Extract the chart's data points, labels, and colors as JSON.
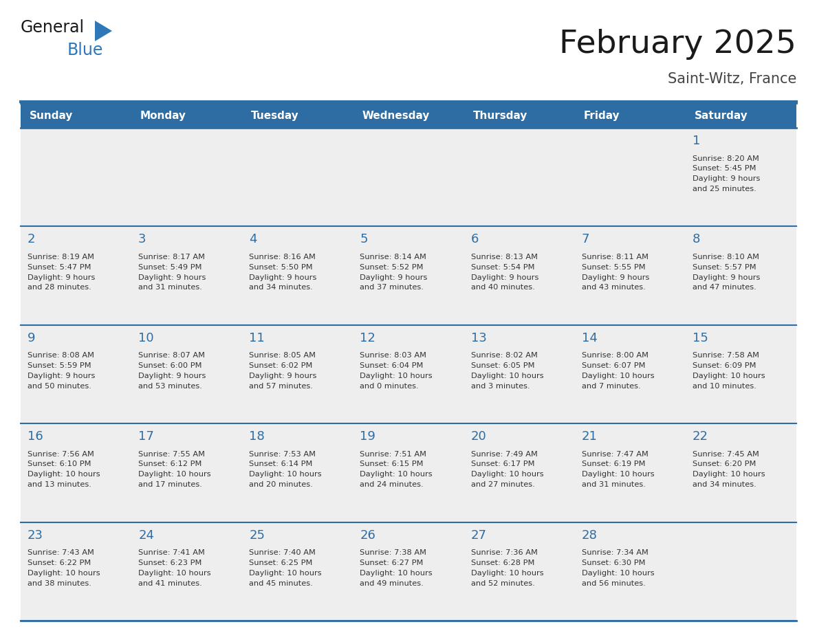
{
  "title": "February 2025",
  "subtitle": "Saint-Witz, France",
  "days_of_week": [
    "Sunday",
    "Monday",
    "Tuesday",
    "Wednesday",
    "Thursday",
    "Friday",
    "Saturday"
  ],
  "header_bg": "#2E6DA4",
  "header_text_color": "#FFFFFF",
  "day_number_color": "#2E6DA4",
  "cell_text_color": "#333333",
  "bg_color": "#FFFFFF",
  "grid_line_color": "#2E6DA4",
  "row_bg": "#EEEEEE",
  "title_color": "#1a1a1a",
  "subtitle_color": "#444444",
  "logo_general_color": "#1a1a1a",
  "logo_blue_color": "#2E78B8",
  "calendar_data": {
    "1": {
      "sunrise": "8:20 AM",
      "sunset": "5:45 PM",
      "daylight": "9 hours and 25 minutes."
    },
    "2": {
      "sunrise": "8:19 AM",
      "sunset": "5:47 PM",
      "daylight": "9 hours and 28 minutes."
    },
    "3": {
      "sunrise": "8:17 AM",
      "sunset": "5:49 PM",
      "daylight": "9 hours and 31 minutes."
    },
    "4": {
      "sunrise": "8:16 AM",
      "sunset": "5:50 PM",
      "daylight": "9 hours and 34 minutes."
    },
    "5": {
      "sunrise": "8:14 AM",
      "sunset": "5:52 PM",
      "daylight": "9 hours and 37 minutes."
    },
    "6": {
      "sunrise": "8:13 AM",
      "sunset": "5:54 PM",
      "daylight": "9 hours and 40 minutes."
    },
    "7": {
      "sunrise": "8:11 AM",
      "sunset": "5:55 PM",
      "daylight": "9 hours and 43 minutes."
    },
    "8": {
      "sunrise": "8:10 AM",
      "sunset": "5:57 PM",
      "daylight": "9 hours and 47 minutes."
    },
    "9": {
      "sunrise": "8:08 AM",
      "sunset": "5:59 PM",
      "daylight": "9 hours and 50 minutes."
    },
    "10": {
      "sunrise": "8:07 AM",
      "sunset": "6:00 PM",
      "daylight": "9 hours and 53 minutes."
    },
    "11": {
      "sunrise": "8:05 AM",
      "sunset": "6:02 PM",
      "daylight": "9 hours and 57 minutes."
    },
    "12": {
      "sunrise": "8:03 AM",
      "sunset": "6:04 PM",
      "daylight": "10 hours and 0 minutes."
    },
    "13": {
      "sunrise": "8:02 AM",
      "sunset": "6:05 PM",
      "daylight": "10 hours and 3 minutes."
    },
    "14": {
      "sunrise": "8:00 AM",
      "sunset": "6:07 PM",
      "daylight": "10 hours and 7 minutes."
    },
    "15": {
      "sunrise": "7:58 AM",
      "sunset": "6:09 PM",
      "daylight": "10 hours and 10 minutes."
    },
    "16": {
      "sunrise": "7:56 AM",
      "sunset": "6:10 PM",
      "daylight": "10 hours and 13 minutes."
    },
    "17": {
      "sunrise": "7:55 AM",
      "sunset": "6:12 PM",
      "daylight": "10 hours and 17 minutes."
    },
    "18": {
      "sunrise": "7:53 AM",
      "sunset": "6:14 PM",
      "daylight": "10 hours and 20 minutes."
    },
    "19": {
      "sunrise": "7:51 AM",
      "sunset": "6:15 PM",
      "daylight": "10 hours and 24 minutes."
    },
    "20": {
      "sunrise": "7:49 AM",
      "sunset": "6:17 PM",
      "daylight": "10 hours and 27 minutes."
    },
    "21": {
      "sunrise": "7:47 AM",
      "sunset": "6:19 PM",
      "daylight": "10 hours and 31 minutes."
    },
    "22": {
      "sunrise": "7:45 AM",
      "sunset": "6:20 PM",
      "daylight": "10 hours and 34 minutes."
    },
    "23": {
      "sunrise": "7:43 AM",
      "sunset": "6:22 PM",
      "daylight": "10 hours and 38 minutes."
    },
    "24": {
      "sunrise": "7:41 AM",
      "sunset": "6:23 PM",
      "daylight": "10 hours and 41 minutes."
    },
    "25": {
      "sunrise": "7:40 AM",
      "sunset": "6:25 PM",
      "daylight": "10 hours and 45 minutes."
    },
    "26": {
      "sunrise": "7:38 AM",
      "sunset": "6:27 PM",
      "daylight": "10 hours and 49 minutes."
    },
    "27": {
      "sunrise": "7:36 AM",
      "sunset": "6:28 PM",
      "daylight": "10 hours and 52 minutes."
    },
    "28": {
      "sunrise": "7:34 AM",
      "sunset": "6:30 PM",
      "daylight": "10 hours and 56 minutes."
    }
  },
  "week_layout": [
    [
      null,
      null,
      null,
      null,
      null,
      null,
      1
    ],
    [
      2,
      3,
      4,
      5,
      6,
      7,
      8
    ],
    [
      9,
      10,
      11,
      12,
      13,
      14,
      15
    ],
    [
      16,
      17,
      18,
      19,
      20,
      21,
      22
    ],
    [
      23,
      24,
      25,
      26,
      27,
      28,
      null
    ]
  ]
}
